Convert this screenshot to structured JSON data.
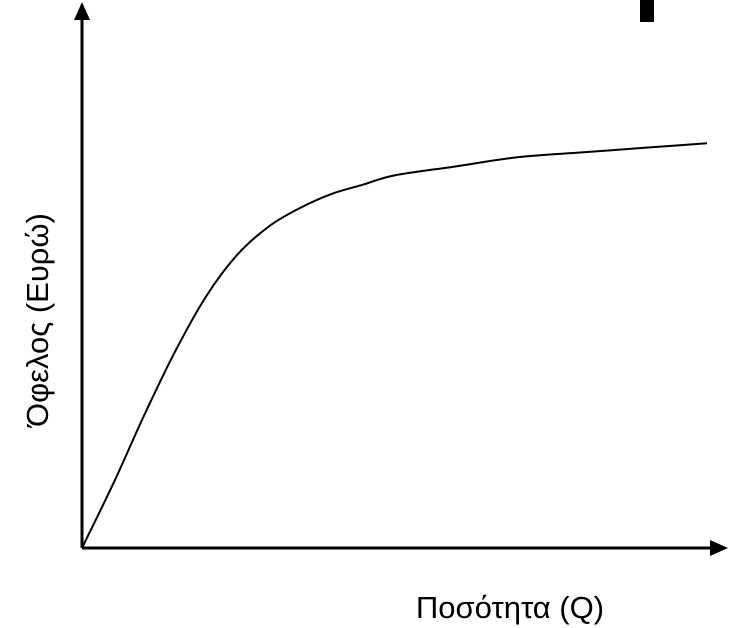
{
  "chart_data": {
    "type": "line",
    "title": "",
    "xlabel": "Ποσότητα (Q)",
    "ylabel": "Όφελος (Ευρώ)",
    "x_ticks": [],
    "y_ticks": [],
    "grid": false,
    "legend": "none",
    "xlim": [
      0,
      100
    ],
    "ylim": [
      0,
      100
    ],
    "series": [
      {
        "x": [
          0,
          5,
          10,
          15,
          20,
          25,
          30,
          35,
          40,
          45,
          50,
          60,
          70,
          80,
          90,
          100
        ],
        "y": [
          0,
          14,
          29,
          43,
          55,
          64,
          70,
          74,
          77,
          79,
          81,
          83,
          85,
          86,
          87,
          88
        ]
      }
    ],
    "colors": {
      "line": "#000000",
      "axes": "#000000"
    }
  }
}
